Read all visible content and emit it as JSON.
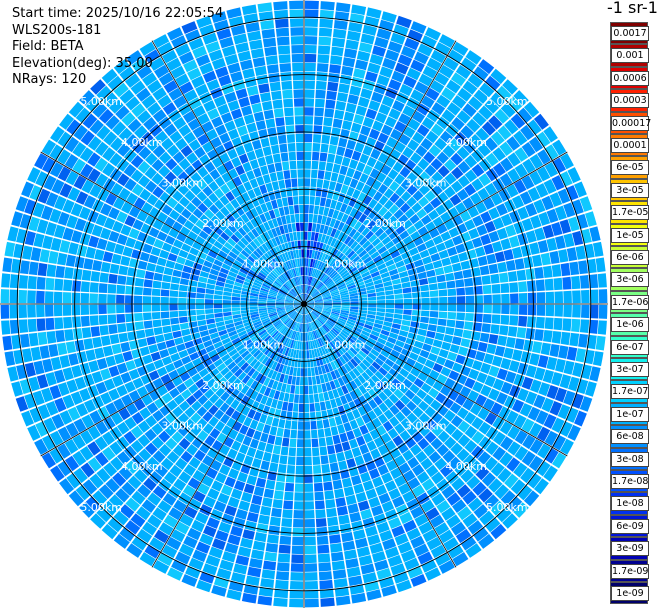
{
  "header": {
    "start_time": "Start time: 2025/10/16 22:05:54",
    "instrument": "WLS200s-181",
    "field": "Field: BETA",
    "elevation": "Elevation(deg): 35.00",
    "nrays": "NRays: 120"
  },
  "colorbar": {
    "unit_label": "-1 sr-1",
    "labels": [
      "0.0017",
      "0.001",
      "0.0006",
      "0.0003",
      "0.00017",
      "0.0001",
      "6e-05",
      "3e-05",
      "1.7e-05",
      "1e-05",
      "6e-06",
      "3e-06",
      "1.7e-06",
      "1e-06",
      "6e-07",
      "3e-07",
      "1.7e-07",
      "1e-07",
      "6e-08",
      "3e-08",
      "1.7e-08",
      "1e-08",
      "6e-09",
      "3e-09",
      "1.7e-09",
      "1e-09"
    ],
    "colors": [
      "#7f0000",
      "#b00000",
      "#e00000",
      "#ff2000",
      "#ff5000",
      "#ff7a00",
      "#ffa000",
      "#ffc400",
      "#ffe400",
      "#f4ff0c",
      "#c8ff36",
      "#a0ff5e",
      "#7aff84",
      "#56ffaa",
      "#32ffcc",
      "#10f0ee",
      "#00d0ff",
      "#00b0ff",
      "#0090ff",
      "#0070ff",
      "#0050ff",
      "#0030f0",
      "#0014d8",
      "#0000b4",
      "#000090",
      "#00006a"
    ]
  },
  "chart_data": {
    "type": "ppi",
    "title": "",
    "field": "BETA",
    "elevation_deg": 35.0,
    "nrays": 120,
    "range_rings_km": [
      1,
      2,
      3,
      4,
      5
    ],
    "ring_labels": [
      "1.00km",
      "2.00km",
      "3.00km",
      "4.00km",
      "5.00km"
    ],
    "max_range_km": 5.3,
    "typical_value": "1e-07 to 3e-08",
    "azimuth_lines_deg": [
      0,
      30,
      60,
      90,
      120,
      150,
      180,
      210,
      240,
      270,
      300,
      330
    ]
  }
}
